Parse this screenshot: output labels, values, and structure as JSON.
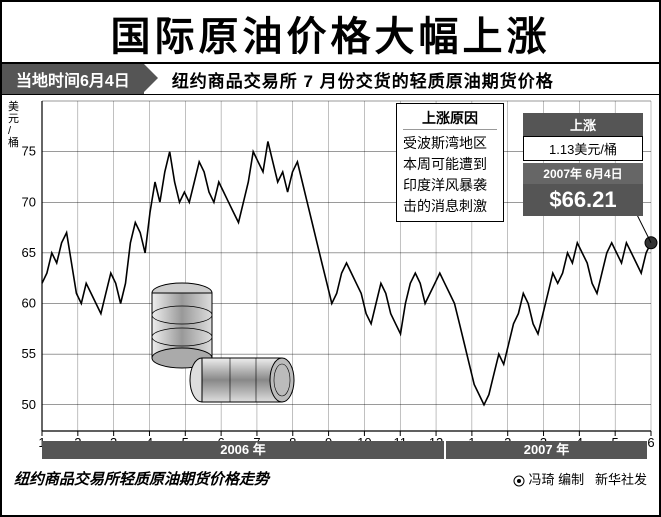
{
  "title": "国际原油价格大幅上涨",
  "date_tab": "当地时间6月4日",
  "subtitle": "纽约商品交易所 7 月份交货的轻质原油期货价格",
  "ylabel_unit": "美元/桶",
  "chart": {
    "type": "line",
    "ylim": [
      48,
      80
    ],
    "yticks": [
      50,
      55,
      60,
      65,
      70,
      75
    ],
    "xticks_2006": [
      1,
      2,
      3,
      4,
      5,
      6,
      7,
      8,
      9,
      10,
      11,
      12
    ],
    "xticks_2007": [
      1,
      2,
      3,
      4,
      5,
      6
    ],
    "year_labels": [
      "2006 年",
      "2007 年"
    ],
    "line_color": "#000000",
    "line_width": 1.6,
    "grid_color": "#000000",
    "grid_width": 0.4,
    "background": "#ffffff",
    "end_marker": {
      "shape": "circle",
      "size": 6,
      "color": "#333333"
    },
    "values": [
      62,
      63,
      65,
      64,
      66,
      67,
      64,
      61,
      60,
      62,
      61,
      60,
      59,
      61,
      63,
      62,
      60,
      62,
      66,
      68,
      67,
      65,
      69,
      72,
      70,
      73,
      75,
      72,
      70,
      71,
      70,
      72,
      74,
      73,
      71,
      70,
      72,
      71,
      70,
      69,
      68,
      70,
      72,
      75,
      74,
      73,
      76,
      74,
      72,
      73,
      71,
      73,
      74,
      72,
      70,
      68,
      66,
      64,
      62,
      60,
      61,
      63,
      64,
      63,
      62,
      61,
      59,
      58,
      60,
      62,
      61,
      59,
      58,
      57,
      60,
      62,
      63,
      62,
      60,
      61,
      62,
      63,
      62,
      61,
      60,
      58,
      56,
      54,
      52,
      51,
      50,
      51,
      53,
      55,
      54,
      56,
      58,
      59,
      61,
      60,
      58,
      57,
      59,
      61,
      63,
      62,
      63,
      65,
      64,
      66,
      65,
      64,
      62,
      61,
      63,
      65,
      66,
      65,
      64,
      66,
      65,
      64,
      63,
      65,
      66
    ]
  },
  "reason": {
    "heading": "上涨原因",
    "body": "受波斯湾地区本周可能遭到印度洋风暴袭击的消息刺激"
  },
  "price_panel": {
    "rise_label": "上涨",
    "rise_value": "1.13美元/桶",
    "date": "2007年 6月4日",
    "price": "$66.21"
  },
  "footer": {
    "note": "纽约商品交易所轻质原油期货价格走势",
    "credit": "冯琦 编制",
    "source": "新华社发"
  },
  "colors": {
    "bar_bg": "#555555",
    "bar_fg": "#ffffff",
    "border": "#000000"
  }
}
